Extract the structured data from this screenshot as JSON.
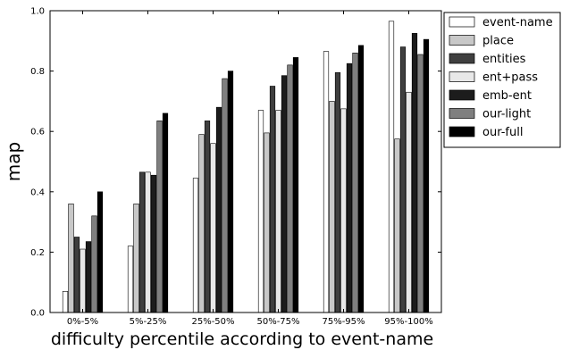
{
  "chart_data": {
    "type": "bar",
    "title": "",
    "xlabel": "difficulty percentile according to event-name",
    "ylabel": "map",
    "ylim": [
      0,
      1.0
    ],
    "yticks": [
      "0.0",
      "0.2",
      "0.4",
      "0.6",
      "0.8",
      "1.0"
    ],
    "grid": false,
    "legend_position": "right",
    "categories": [
      "0%-5%",
      "5%-25%",
      "25%-50%",
      "50%-75%",
      "75%-95%",
      "95%-100%"
    ],
    "series": [
      {
        "name": "event-name",
        "color": "#ffffff",
        "values": [
          0.07,
          0.22,
          0.445,
          0.67,
          0.865,
          0.965
        ]
      },
      {
        "name": "place",
        "color": "#c8c8c8",
        "values": [
          0.36,
          0.36,
          0.59,
          0.595,
          0.7,
          0.575
        ]
      },
      {
        "name": "entities",
        "color": "#3f3f3f",
        "values": [
          0.25,
          0.465,
          0.635,
          0.75,
          0.795,
          0.88
        ]
      },
      {
        "name": "ent+pass",
        "color": "#e8e8e8",
        "values": [
          0.21,
          0.465,
          0.56,
          0.67,
          0.675,
          0.73
        ]
      },
      {
        "name": "emb-ent",
        "color": "#1c1c1c",
        "values": [
          0.235,
          0.455,
          0.68,
          0.785,
          0.825,
          0.925
        ]
      },
      {
        "name": "our-light",
        "color": "#7f7f7f",
        "values": [
          0.32,
          0.635,
          0.775,
          0.82,
          0.86,
          0.855
        ]
      },
      {
        "name": "our-full",
        "color": "#000000",
        "values": [
          0.4,
          0.66,
          0.8,
          0.845,
          0.885,
          0.905
        ]
      }
    ]
  }
}
